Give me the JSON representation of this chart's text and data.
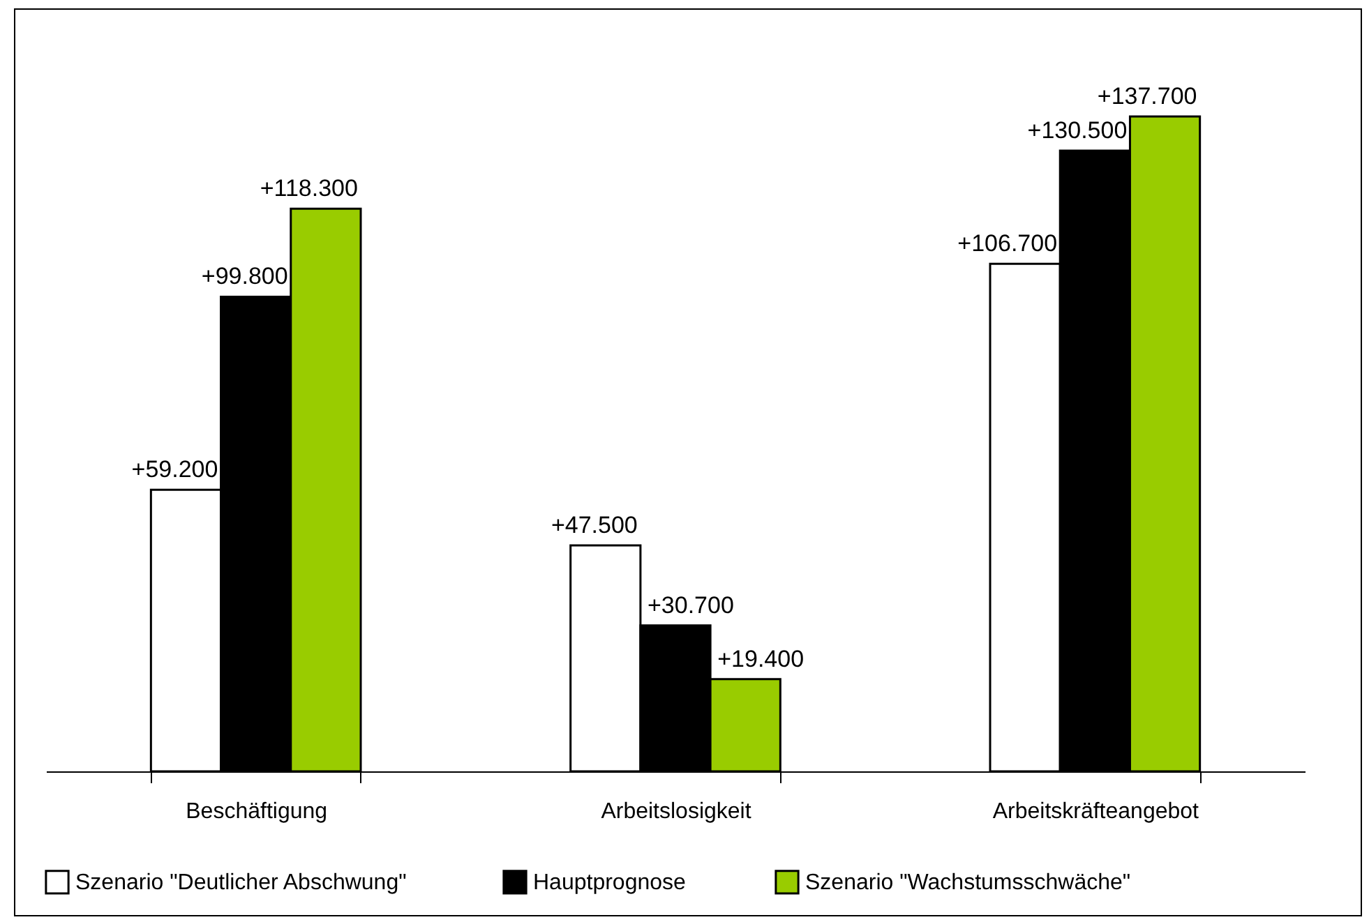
{
  "chart_data": {
    "type": "bar",
    "categories": [
      "Beschäftigung",
      "Arbeitslosigkeit",
      "Arbeitskräfteangebot"
    ],
    "series": [
      {
        "name": "Szenario  \"Deutlicher Abschwung\"",
        "color": "#ffffff",
        "values": [
          59200,
          47500,
          106700
        ],
        "value_labels": [
          "+59.200",
          "+47.500",
          "+106.700"
        ]
      },
      {
        "name": "Hauptprognose",
        "color": "#000000",
        "values": [
          99800,
          30700,
          130500
        ],
        "value_labels": [
          "+99.800",
          "+30.700",
          "+130.500"
        ]
      },
      {
        "name": "Szenario \"Wachstumsschwäche\"",
        "color": "#99cc00",
        "values": [
          118300,
          19400,
          137700
        ],
        "value_labels": [
          "+118.300",
          "+19.400",
          "+137.700"
        ]
      }
    ],
    "legend": "bottom",
    "grid": false
  }
}
